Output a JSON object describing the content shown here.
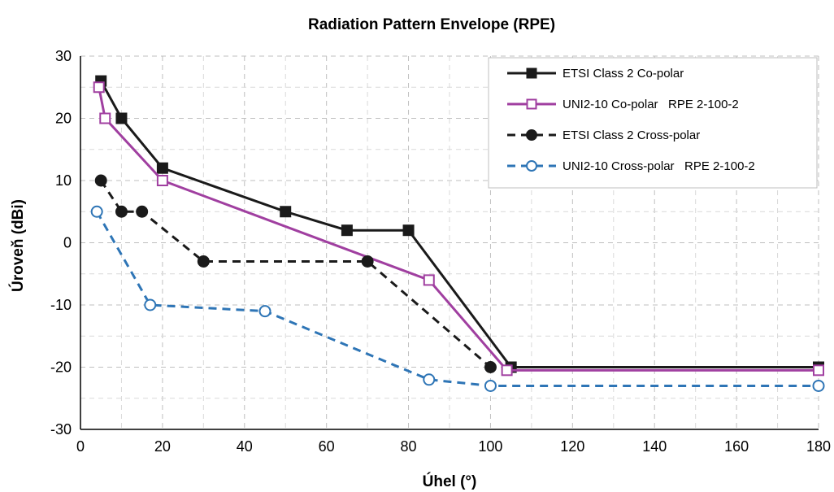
{
  "chart_data": {
    "type": "line",
    "title": "Radiation Pattern Envelope (RPE)",
    "xlabel": "Úhel (°)",
    "ylabel": "Úroveň (dBi)",
    "xlim": [
      0,
      180
    ],
    "ylim": [
      -30,
      30
    ],
    "x_ticks": [
      "0",
      "20",
      "40",
      "60",
      "80",
      "100",
      "120",
      "140",
      "160",
      "180"
    ],
    "y_ticks": [
      "30",
      "20",
      "10",
      "0",
      "-10",
      "-20",
      "-30"
    ],
    "grid": "dashed major and minor gridlines",
    "legend_position": "top-right",
    "series": [
      {
        "name": "ETSI Class 2 Co-polar",
        "color": "#1a1a1a",
        "dash": "solid",
        "marker": "filled-square",
        "x": [
          5,
          10,
          20,
          50,
          65,
          80,
          105,
          180
        ],
        "y": [
          26,
          20,
          12,
          5,
          2,
          2,
          -20,
          -20
        ]
      },
      {
        "name": "UNI2-10 Co-polar   RPE 2-100-2",
        "color": "#a03fa0",
        "dash": "solid",
        "marker": "open-square",
        "x": [
          4.5,
          6,
          20,
          85,
          104,
          180
        ],
        "y": [
          25,
          20,
          10,
          -6,
          -20.5,
          -20.5
        ]
      },
      {
        "name": "ETSI Class 2 Cross-polar",
        "color": "#1a1a1a",
        "dash": "dashed",
        "marker": "filled-circle",
        "x": [
          5,
          10,
          15,
          30,
          70,
          100
        ],
        "y": [
          10,
          5,
          5,
          -3,
          -3,
          -20
        ]
      },
      {
        "name": "UNI2-10 Cross-polar   RPE 2-100-2",
        "color": "#2e75b6",
        "dash": "dashed",
        "marker": "open-circle",
        "x": [
          4,
          17,
          45,
          85,
          100,
          180
        ],
        "y": [
          5,
          -10,
          -11,
          -22,
          -23,
          -23
        ]
      }
    ]
  }
}
